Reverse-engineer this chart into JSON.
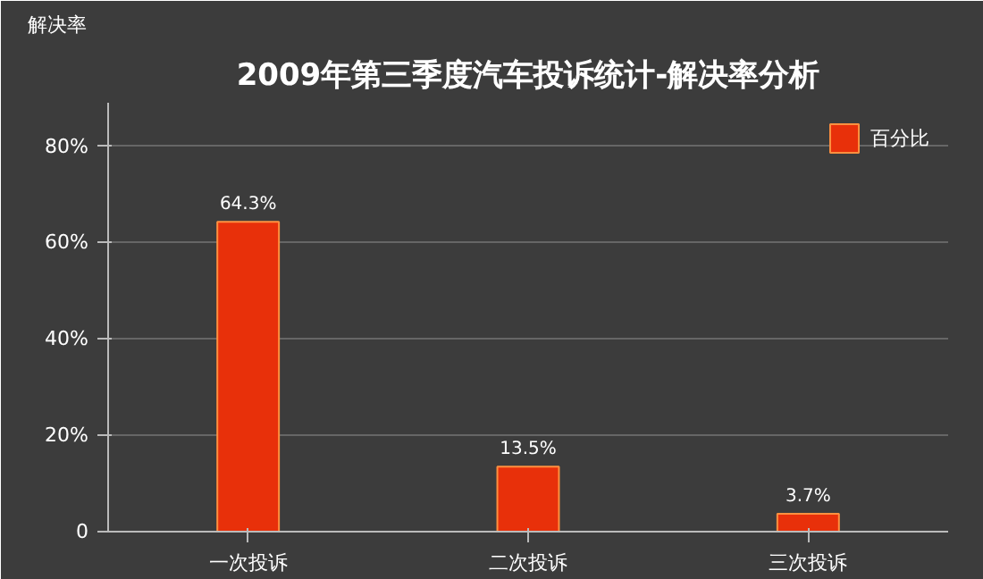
{
  "chart_data": {
    "type": "bar",
    "title": "2009年第三季度汽车投诉统计-解决率分析",
    "ylabel": "解决率",
    "categories": [
      "一次投诉",
      "二次投诉",
      "三次投诉"
    ],
    "series": [
      {
        "name": "百分比",
        "color": "#e8300a",
        "values": [
          64.3,
          13.5,
          3.7
        ],
        "value_labels": [
          "64.3%",
          "13.5%",
          "3.7%"
        ]
      }
    ],
    "ylim": [
      0,
      89
    ],
    "yticks": [
      0,
      {
        "value": 20,
        "label": "20%"
      },
      {
        "value": 40,
        "label": "40%"
      },
      {
        "value": 60,
        "label": "60%"
      },
      {
        "value": 80,
        "label": "80%"
      }
    ],
    "grid": "y",
    "legend": "top right"
  }
}
